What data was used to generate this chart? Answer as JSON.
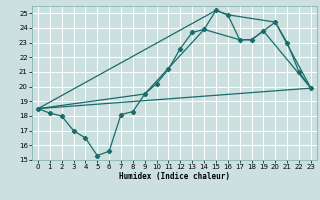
{
  "xlabel": "Humidex (Indice chaleur)",
  "xlim": [
    -0.5,
    23.5
  ],
  "ylim": [
    15,
    25.5
  ],
  "yticks": [
    15,
    16,
    17,
    18,
    19,
    20,
    21,
    22,
    23,
    24,
    25
  ],
  "xticks": [
    0,
    1,
    2,
    3,
    4,
    5,
    6,
    7,
    8,
    9,
    10,
    11,
    12,
    13,
    14,
    15,
    16,
    17,
    18,
    19,
    20,
    21,
    22,
    23
  ],
  "bg_color": "#cce0e0",
  "line_color": "#1a6b6b",
  "grid_color": "#b0d0d0",
  "main_x": [
    0,
    1,
    2,
    3,
    4,
    5,
    6,
    7,
    8,
    9,
    10,
    11,
    12,
    13,
    14,
    15,
    16,
    17,
    18,
    19,
    20,
    21,
    22,
    23
  ],
  "main_y": [
    18.5,
    18.2,
    18.0,
    17.0,
    16.5,
    15.3,
    15.6,
    18.1,
    18.3,
    19.5,
    20.2,
    21.2,
    22.6,
    23.7,
    23.9,
    25.2,
    24.9,
    23.2,
    23.2,
    23.8,
    24.4,
    23.0,
    21.0,
    19.9
  ],
  "line2_x": [
    0,
    23
  ],
  "line2_y": [
    18.5,
    19.9
  ],
  "line3_x": [
    0,
    15,
    16,
    20,
    23
  ],
  "line3_y": [
    18.5,
    25.2,
    24.9,
    24.4,
    19.9
  ],
  "line4_x": [
    0,
    9,
    14,
    17,
    18,
    19,
    23
  ],
  "line4_y": [
    18.5,
    19.5,
    23.9,
    23.2,
    23.2,
    23.8,
    19.9
  ]
}
